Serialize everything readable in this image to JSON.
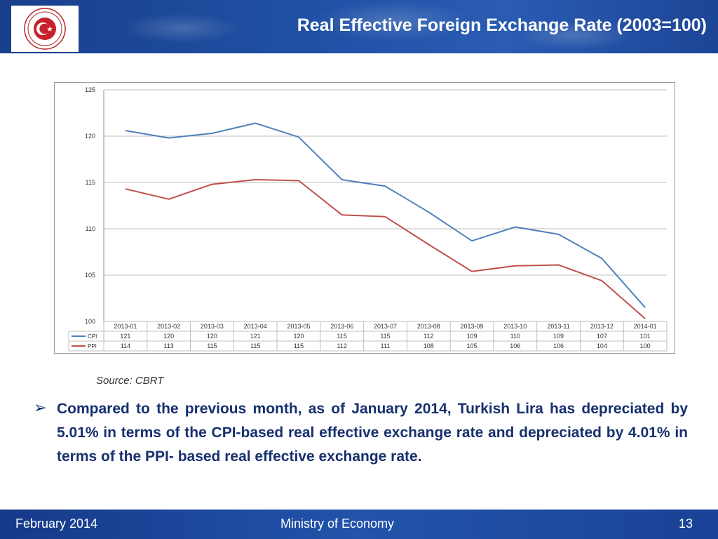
{
  "header": {
    "title": "Real Effective Foreign Exchange Rate (2003=100)"
  },
  "chart_data": {
    "type": "line",
    "categories": [
      "2013-01",
      "2013-02",
      "2013-03",
      "2013-04",
      "2013-05",
      "2013-06",
      "2013-07",
      "2013-08",
      "2013-09",
      "2013-10",
      "2013-11",
      "2013-12",
      "2014-01"
    ],
    "series": [
      {
        "name": "CPI",
        "color": "#4f81bd",
        "values": [
          120.6,
          119.8,
          120.3,
          121.4,
          119.9,
          115.3,
          114.6,
          111.8,
          108.7,
          110.2,
          109.4,
          106.8,
          101.5
        ],
        "table_values": [
          "121",
          "120",
          "120",
          "121",
          "120",
          "115",
          "115",
          "112",
          "109",
          "110",
          "109",
          "107",
          "101"
        ]
      },
      {
        "name": "PPI",
        "color": "#c0504d",
        "values": [
          114.3,
          113.2,
          114.8,
          115.3,
          115.2,
          111.5,
          111.3,
          108.3,
          105.4,
          106.0,
          106.1,
          104.4,
          100.3
        ],
        "table_values": [
          "114",
          "113",
          "115",
          "115",
          "115",
          "112",
          "111",
          "108",
          "105",
          "106",
          "106",
          "104",
          "100"
        ]
      }
    ],
    "yticks": [
      "125",
      "120",
      "115",
      "110",
      "105",
      "100"
    ],
    "ylim": [
      100,
      125
    ],
    "grid": true,
    "legend": "data-table-left"
  },
  "source": "Source: CBRT",
  "bullet": {
    "marker": "➢",
    "text": "Compared to the previous month, as of January 2014, Turkish Lira has depreciated by 5.01% in terms of the CPI-based real effective exchange rate and depreciated by 4.01% in terms of the PPI- based real effective exchange rate."
  },
  "footer": {
    "date": "February 2014",
    "ministry": "Ministry of Economy",
    "page": "13"
  }
}
